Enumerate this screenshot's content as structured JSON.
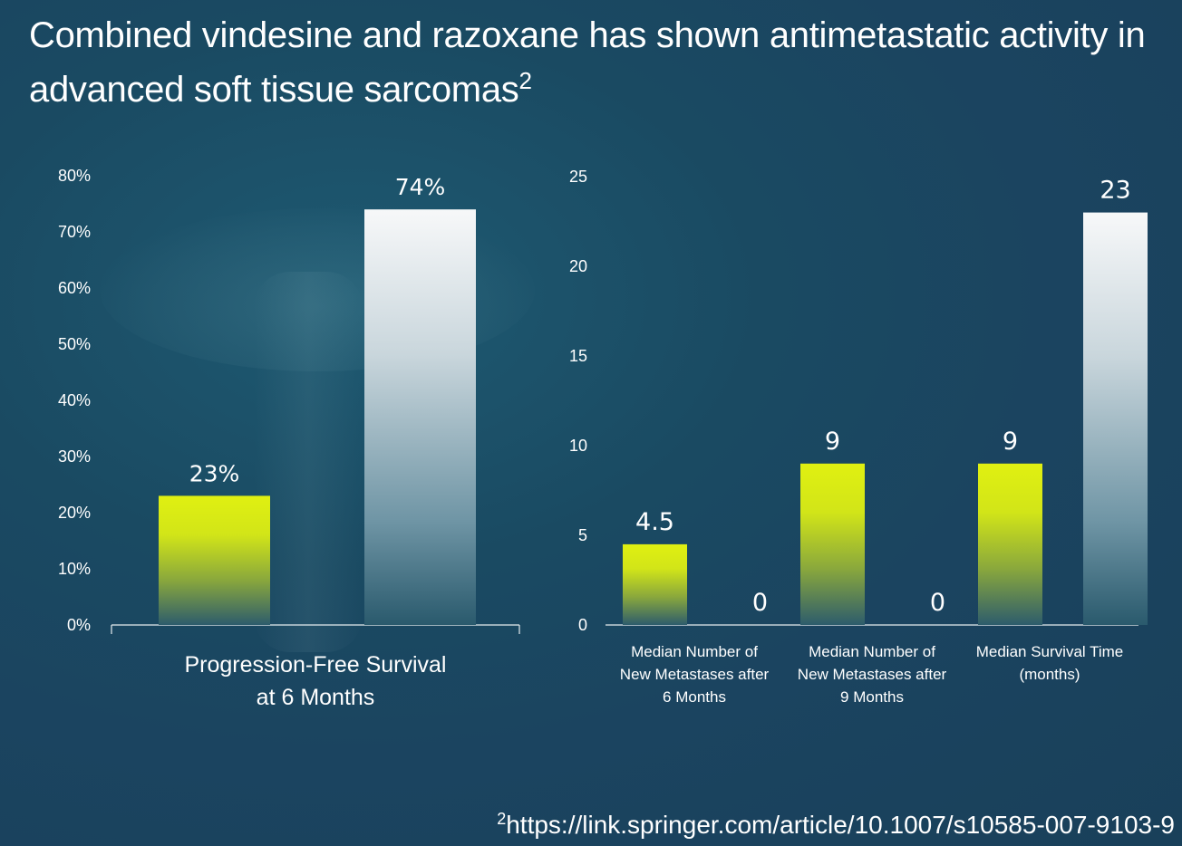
{
  "title": {
    "text": "Combined vindesine and razoxane has shown antimetastatic activity in advanced soft tissue sarcomas",
    "ref": "2"
  },
  "footnote": {
    "ref": "2",
    "text": "https://link.springer.com/article/10.1007/s10585-007-9103-9"
  },
  "colors": {
    "series_a": "#d8ec12",
    "series_b": "#f2f4f6",
    "axis": "#e6edf0",
    "background": "#1a4a62"
  },
  "chart_data": [
    {
      "type": "bar",
      "categories": [
        "Progression-Free Survival\nat 6 Months"
      ],
      "series": [
        {
          "values": [
            23
          ],
          "labels": [
            "23%"
          ]
        },
        {
          "values": [
            74
          ],
          "labels": [
            "74%"
          ]
        }
      ],
      "ylim": [
        0,
        80
      ],
      "yticks": [
        "0%",
        "10%",
        "20%",
        "30%",
        "40%",
        "50%",
        "60%",
        "70%",
        "80%"
      ],
      "grid": false
    },
    {
      "type": "bar",
      "categories": [
        "Median Number of\nNew Metastases after\n6 Months",
        "Median Number of\nNew Metastases after\n9 Months",
        "Median Survival Time\n(months)"
      ],
      "series": [
        {
          "values": [
            4.5,
            9,
            9
          ],
          "labels": [
            "4.5",
            "9",
            "9"
          ]
        },
        {
          "values": [
            0,
            0,
            23
          ],
          "labels": [
            "0",
            "0",
            "23"
          ]
        }
      ],
      "ylim": [
        0,
        25
      ],
      "yticks": [
        "0",
        "5",
        "10",
        "15",
        "20",
        "25"
      ],
      "grid": false
    }
  ]
}
